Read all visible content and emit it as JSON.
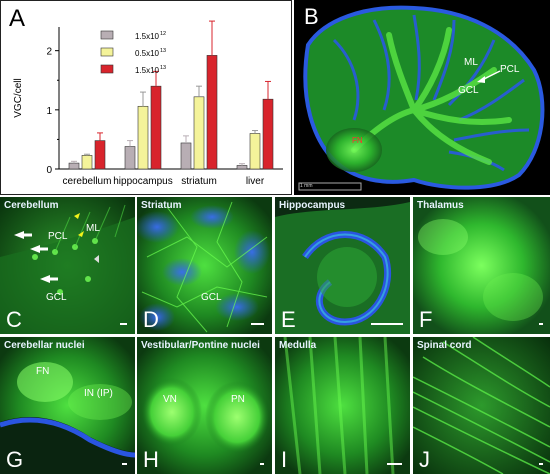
{
  "panelA": {
    "letter": "A",
    "chart_data": {
      "type": "bar",
      "categories": [
        "cerebellum",
        "hippocampus",
        "striatum",
        "liver"
      ],
      "series": [
        {
          "name": "1.5x10",
          "exponent": "12",
          "color": "#b8aeb4",
          "values": [
            0.1,
            0.38,
            0.44,
            0.06
          ],
          "errors": [
            0.03,
            0.1,
            0.12,
            0.03
          ]
        },
        {
          "name": "0.5x10",
          "exponent": "13",
          "color": "#f4f39a",
          "values": [
            0.23,
            1.06,
            1.22,
            0.6
          ],
          "errors": [
            0.02,
            0.24,
            0.18,
            0.05
          ]
        },
        {
          "name": "1.5x10",
          "exponent": "13",
          "color": "#d8242c",
          "values": [
            0.48,
            1.4,
            1.92,
            1.18
          ],
          "errors": [
            0.13,
            0.25,
            0.58,
            0.3
          ]
        }
      ],
      "ylabel": "VGC/cell",
      "xlabel": "",
      "ylim": [
        0,
        2.4
      ],
      "yticks": [
        0,
        1,
        2
      ],
      "legend_position": "top-left",
      "grid": false
    }
  },
  "panelB": {
    "letter": "B",
    "labels": {
      "ml": "ML",
      "pcl": "PCL",
      "gcl": "GCL",
      "fn": "FN"
    },
    "scale_text": "1 mm"
  },
  "panels": {
    "C": {
      "letter": "C",
      "title": "Cerebellum",
      "labels": {
        "pcl": "PCL",
        "ml": "ML",
        "gcl": "GCL"
      }
    },
    "D": {
      "letter": "D",
      "title": "Striatum",
      "labels": {
        "gcl": "GCL"
      }
    },
    "E": {
      "letter": "E",
      "title": "Hippocampus"
    },
    "F": {
      "letter": "F",
      "title": "Thalamus"
    },
    "G": {
      "letter": "G",
      "title": "Cerebellar nuclei",
      "labels": {
        "fn": "FN",
        "in": "IN (IP)"
      }
    },
    "H": {
      "letter": "H",
      "title": "Vestibular/Pontine nuclei",
      "labels": {
        "vn": "VN",
        "pn": "PN"
      }
    },
    "I": {
      "letter": "I",
      "title": "Medulla"
    },
    "J": {
      "letter": "J",
      "title": "Spinal cord"
    }
  },
  "colors": {
    "fluor_green": "#2ec830",
    "nuclear_blue": "#2a55e0",
    "bar_gray": "#b8aeb4",
    "bar_yellow": "#f4f39a",
    "bar_red": "#d8242c"
  }
}
